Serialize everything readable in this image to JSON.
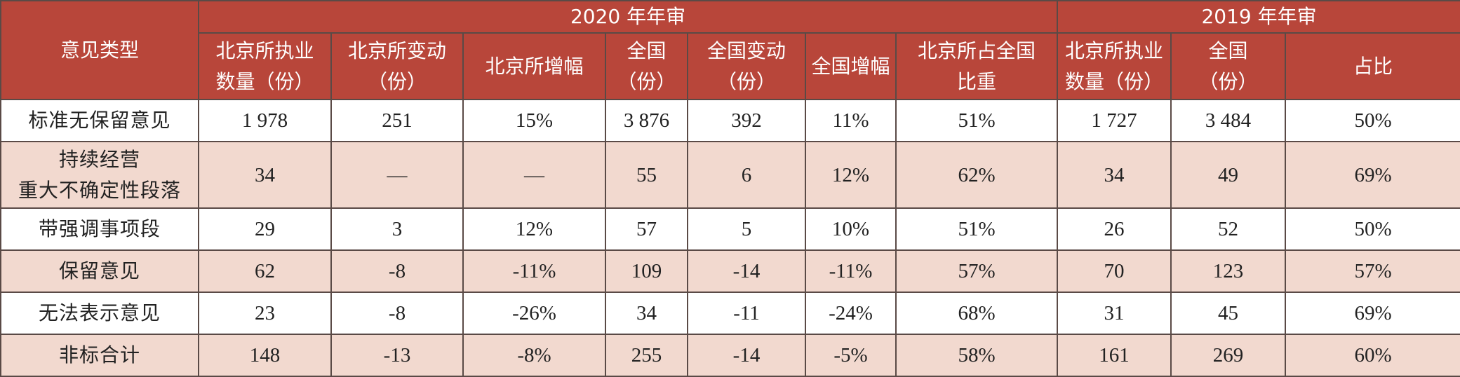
{
  "colors": {
    "header_bg": "#b8463a",
    "row_odd_bg": "#ffffff",
    "row_even_bg": "#f2d9cf",
    "border": "#5a4a46",
    "header_text": "#ffffff",
    "body_text": "#222222"
  },
  "table": {
    "type_header": "意见类型",
    "group_2020": "2020 年年审",
    "group_2019": "2019 年年审",
    "columns": [
      {
        "line1": "北京所执业",
        "line2": "数量（份）"
      },
      {
        "line1": "北京所变动",
        "line2": "（份）"
      },
      {
        "line1": "北京所增幅",
        "line2": ""
      },
      {
        "line1": "全国",
        "line2": "（份）"
      },
      {
        "line1": "全国变动",
        "line2": "（份）"
      },
      {
        "line1": "全国增幅",
        "line2": ""
      },
      {
        "line1": "北京所占全国",
        "line2": "比重"
      },
      {
        "line1": "北京所执业",
        "line2": "数量（份）"
      },
      {
        "line1": "全国",
        "line2": "（份）"
      },
      {
        "line1": "占比",
        "line2": ""
      }
    ],
    "rows": [
      {
        "type_line1": "标准无保留意见",
        "type_line2": "",
        "cells": [
          "1 978",
          "251",
          "15%",
          "3 876",
          "392",
          "11%",
          "51%",
          "1 727",
          "3 484",
          "50%"
        ]
      },
      {
        "type_line1": "持续经营",
        "type_line2": "重大不确定性段落",
        "cells": [
          "34",
          "—",
          "—",
          "55",
          "6",
          "12%",
          "62%",
          "34",
          "49",
          "69%"
        ]
      },
      {
        "type_line1": "带强调事项段",
        "type_line2": "",
        "cells": [
          "29",
          "3",
          "12%",
          "57",
          "5",
          "10%",
          "51%",
          "26",
          "52",
          "50%"
        ]
      },
      {
        "type_line1": "保留意见",
        "type_line2": "",
        "cells": [
          "62",
          "-8",
          "-11%",
          "109",
          "-14",
          "-11%",
          "57%",
          "70",
          "123",
          "57%"
        ]
      },
      {
        "type_line1": "无法表示意见",
        "type_line2": "",
        "cells": [
          "23",
          "-8",
          "-26%",
          "34",
          "-11",
          "-24%",
          "68%",
          "31",
          "45",
          "69%"
        ]
      },
      {
        "type_line1": "非标合计",
        "type_line2": "",
        "cells": [
          "148",
          "-13",
          "-8%",
          "255",
          "-14",
          "-5%",
          "58%",
          "161",
          "269",
          "60%"
        ]
      }
    ]
  }
}
